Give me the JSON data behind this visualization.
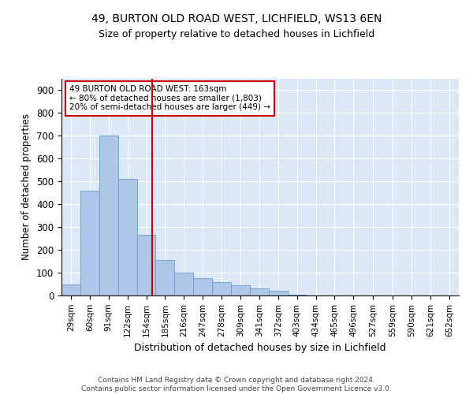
{
  "title1": "49, BURTON OLD ROAD WEST, LICHFIELD, WS13 6EN",
  "title2": "Size of property relative to detached houses in Lichfield",
  "xlabel": "Distribution of detached houses by size in Lichfield",
  "ylabel": "Number of detached properties",
  "footer1": "Contains HM Land Registry data © Crown copyright and database right 2024.",
  "footer2": "Contains public sector information licensed under the Open Government Licence v3.0.",
  "annotation_line1": "49 BURTON OLD ROAD WEST: 163sqm",
  "annotation_line2": "← 80% of detached houses are smaller (1,803)",
  "annotation_line3": "20% of semi-detached houses are larger (449) →",
  "marker_value": 163,
  "categories": [
    "29sqm",
    "60sqm",
    "91sqm",
    "122sqm",
    "154sqm",
    "185sqm",
    "216sqm",
    "247sqm",
    "278sqm",
    "309sqm",
    "341sqm",
    "372sqm",
    "403sqm",
    "434sqm",
    "465sqm",
    "496sqm",
    "527sqm",
    "559sqm",
    "590sqm",
    "621sqm",
    "652sqm"
  ],
  "bin_edges": [
    14,
    45,
    76,
    107,
    138,
    169,
    200,
    231,
    262,
    293,
    324,
    355,
    386,
    417,
    448,
    479,
    510,
    544,
    575,
    606,
    637,
    668
  ],
  "values": [
    50,
    460,
    700,
    510,
    265,
    155,
    100,
    75,
    60,
    45,
    30,
    20,
    5,
    0,
    0,
    0,
    0,
    0,
    0,
    0,
    0
  ],
  "bar_color": "#aec6e8",
  "bar_edge_color": "#6a9fc8",
  "marker_color": "#cc0000",
  "background_color": "#dce8f5",
  "ylim": [
    0,
    950
  ],
  "yticks": [
    0,
    100,
    200,
    300,
    400,
    500,
    600,
    700,
    800,
    900
  ]
}
